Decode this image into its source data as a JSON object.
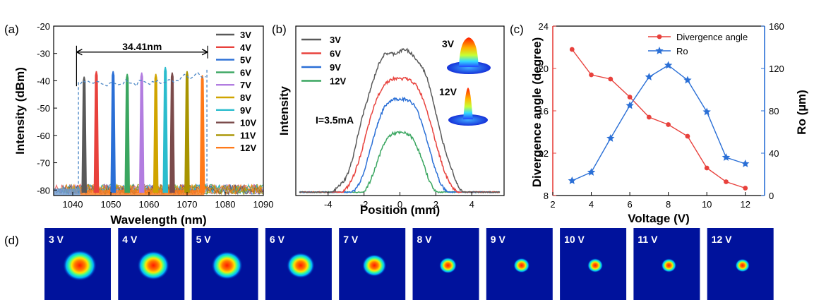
{
  "panel_labels": {
    "a": "(a)",
    "b": "(b)",
    "c": "(c)",
    "d": "(d)"
  },
  "chart_data": [
    {
      "id": "a",
      "type": "line",
      "xlabel": "Wavelength (nm)",
      "ylabel": "Intensity (dBm)",
      "xlim": [
        1035,
        1090
      ],
      "ylim": [
        -82,
        -20
      ],
      "x_ticks": [
        "1040",
        "1050",
        "1060",
        "1070",
        "1080",
        "1090"
      ],
      "y_ticks": [
        "-20",
        "-30",
        "-40",
        "-50",
        "-60",
        "-70",
        "-80"
      ],
      "noise_floor": -81,
      "annotation": {
        "text": "34.41nm",
        "from": 1041.0,
        "to": 1075.4
      },
      "envelope": {
        "style": "dashed",
        "color": "#4a86c5"
      },
      "series": [
        {
          "name": "3V",
          "peak_x": 1043.0,
          "peak_y": -38.5,
          "color": "#595959"
        },
        {
          "name": "4V",
          "peak_x": 1046.2,
          "peak_y": -36.5,
          "color": "#e8413c"
        },
        {
          "name": "5V",
          "peak_x": 1050.6,
          "peak_y": -36.5,
          "color": "#2a6fd6"
        },
        {
          "name": "6V",
          "peak_x": 1054.3,
          "peak_y": -37.5,
          "color": "#3aa660"
        },
        {
          "name": "7V",
          "peak_x": 1058.1,
          "peak_y": -37.0,
          "color": "#b27de0"
        },
        {
          "name": "8V",
          "peak_x": 1061.8,
          "peak_y": -37.5,
          "color": "#d0a400"
        },
        {
          "name": "9V",
          "peak_x": 1064.3,
          "peak_y": -35.0,
          "color": "#2bbccd"
        },
        {
          "name": "10V",
          "peak_x": 1066.1,
          "peak_y": -37.0,
          "color": "#7b4b4b"
        },
        {
          "name": "11V",
          "peak_x": 1070.0,
          "peak_y": -36.5,
          "color": "#a89400"
        },
        {
          "name": "12V",
          "peak_x": 1074.0,
          "peak_y": -38.0,
          "color": "#ff7a1a"
        }
      ]
    },
    {
      "id": "b",
      "type": "line",
      "xlabel": "Position (mm)",
      "ylabel": "Intensity",
      "xlim": [
        -5.8,
        5.8
      ],
      "ylim": [
        0,
        1.0
      ],
      "x_ticks": [
        "-4",
        "-2",
        "0",
        "2",
        "4"
      ],
      "annotation": "I=3.5mA",
      "series": [
        {
          "name": "3V",
          "amplitude": 0.85,
          "width_mm": 2.8,
          "color": "#595959"
        },
        {
          "name": "6V",
          "amplitude": 0.69,
          "width_mm": 2.5,
          "color": "#e8413c"
        },
        {
          "name": "9V",
          "amplitude": 0.57,
          "width_mm": 2.1,
          "color": "#2a6fd6"
        },
        {
          "name": "12V",
          "amplitude": 0.37,
          "width_mm": 1.7,
          "color": "#3aa660"
        }
      ],
      "insets": [
        {
          "label": "3V"
        },
        {
          "label": "12V"
        }
      ]
    },
    {
      "id": "c",
      "type": "line",
      "xlabel": "Voltage (V)",
      "ylabel_left": "Divergence angle (degree)",
      "ylabel_right": "Ro (µm)",
      "xlim": [
        2,
        13
      ],
      "ylim_left": [
        8,
        24
      ],
      "ylim_right": [
        0,
        160
      ],
      "x_ticks": [
        "2",
        "4",
        "6",
        "8",
        "10",
        "12"
      ],
      "y_ticks_left": [
        "8",
        "12",
        "16",
        "20",
        "24"
      ],
      "y_ticks_right": [
        "0",
        "40",
        "80",
        "120",
        "160"
      ],
      "x": [
        3,
        4,
        5,
        6,
        7,
        8,
        9,
        10,
        11,
        12
      ],
      "series": [
        {
          "name": "Divergence angle",
          "axis": "left",
          "color": "#e8413c",
          "marker": "circle",
          "values": [
            21.8,
            19.4,
            19.0,
            17.3,
            15.4,
            14.7,
            13.6,
            10.6,
            9.3,
            8.7
          ]
        },
        {
          "name": "Ro",
          "axis": "right",
          "color": "#2a6fd6",
          "marker": "star",
          "values": [
            14,
            22,
            54,
            85,
            112,
            123,
            109,
            79,
            36,
            30
          ]
        }
      ]
    }
  ],
  "beam_profiles": {
    "labels": [
      "3 V",
      "4 V",
      "5 V",
      "6 V",
      "7 V",
      "8 V",
      "9 V",
      "10 V",
      "11 V",
      "12 V"
    ],
    "relative_size": [
      1.0,
      0.95,
      0.92,
      0.83,
      0.72,
      0.52,
      0.48,
      0.46,
      0.45,
      0.43
    ]
  },
  "colors": {
    "background_blue": "#00129c"
  }
}
